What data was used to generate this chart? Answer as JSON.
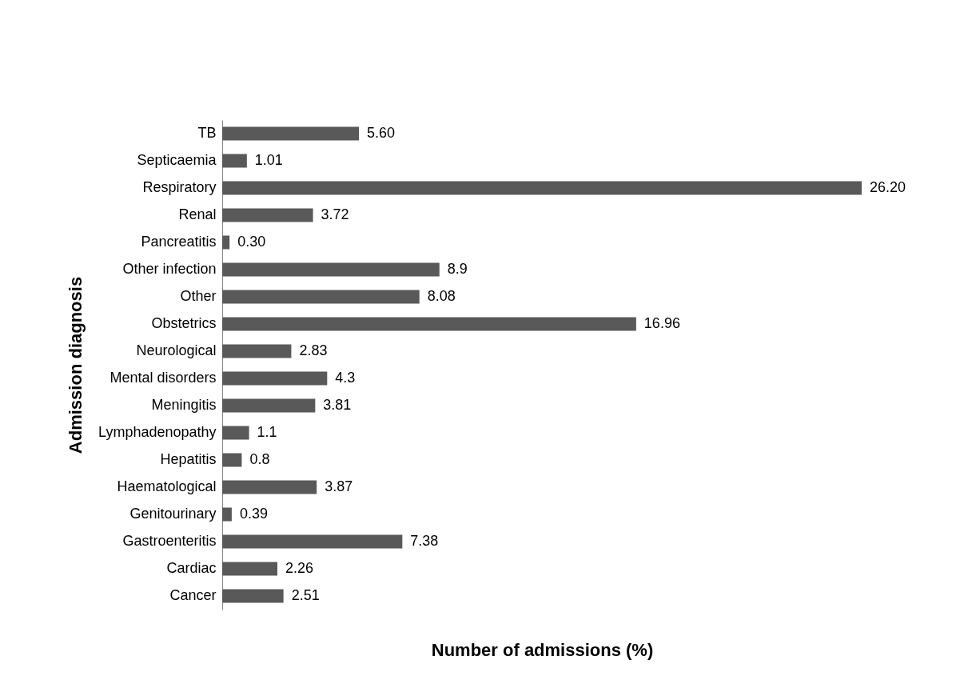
{
  "chart_data": {
    "type": "bar",
    "orientation": "horizontal",
    "xlabel": "Number of admissions (%)",
    "ylabel": "Admission diagnosis",
    "categories": [
      "TB",
      "Septicaemia",
      "Respiratory",
      "Renal",
      "Pancreatitis",
      "Other infection",
      "Other",
      "Obstetrics",
      "Neurological",
      "Mental disorders",
      "Meningitis",
      "Lymphadenopathy",
      "Hepatitis",
      "Haematological",
      "Genitourinary",
      "Gastroenteritis",
      "Cardiac",
      "Cancer"
    ],
    "values": [
      5.6,
      1.01,
      26.2,
      3.72,
      0.3,
      8.9,
      8.08,
      16.96,
      2.83,
      4.3,
      3.81,
      1.1,
      0.8,
      3.87,
      0.39,
      7.38,
      2.26,
      2.51
    ],
    "value_labels": [
      "5.60",
      "1.01",
      "26.20",
      "3.72",
      "0.30",
      "8.9",
      "8.08",
      "16.96",
      "2.83",
      "4.3",
      "3.81",
      "1.1",
      "0.8",
      "3.87",
      "0.39",
      "7.38",
      "2.26",
      "2.51"
    ],
    "color": "#595959",
    "tick_labels": "y"
  }
}
